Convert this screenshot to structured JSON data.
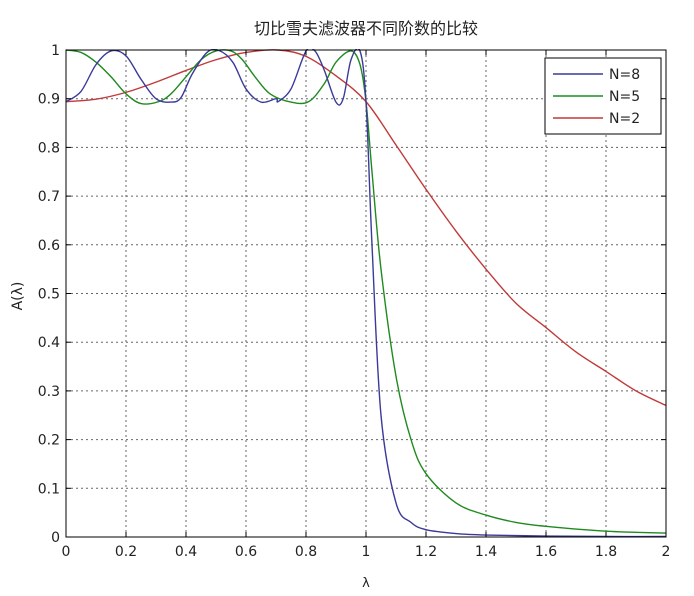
{
  "chart_data": {
    "type": "line",
    "title": "切比雪夫滤波器不同阶数的比较",
    "xlabel": "λ",
    "ylabel": "A(λ)",
    "xlim": [
      0,
      2
    ],
    "ylim": [
      0,
      1
    ],
    "x_ticks": [
      0,
      0.2,
      0.4,
      0.6,
      0.8,
      1,
      1.2,
      1.4,
      1.6,
      1.8,
      2
    ],
    "x_tick_labels": [
      "0",
      "0.2",
      "0.4",
      "0.6",
      "0.8",
      "1",
      "1.2",
      "1.4",
      "1.6",
      "1.8",
      "2"
    ],
    "y_ticks": [
      0,
      0.1,
      0.2,
      0.3,
      0.4,
      0.5,
      0.6,
      0.7,
      0.8,
      0.9,
      1
    ],
    "y_tick_labels": [
      "0",
      "0.1",
      "0.2",
      "0.3",
      "0.4",
      "0.5",
      "0.6",
      "0.7",
      "0.8",
      "0.9",
      "1"
    ],
    "grid": true,
    "legend": "top-right",
    "series": [
      {
        "name": "N=8",
        "color": "#3a3a9a",
        "x": [
          0,
          0.05,
          0.1,
          0.15,
          0.2,
          0.25,
          0.3,
          0.35,
          0.383,
          0.42,
          0.47,
          0.51,
          0.556,
          0.6,
          0.65,
          0.7,
          0.707,
          0.75,
          0.8,
          0.83,
          0.86,
          0.9,
          0.924,
          0.95,
          0.98,
          1,
          1.02,
          1.05,
          1.1,
          1.15,
          1.2,
          1.3,
          1.4,
          1.6,
          1.8,
          2
        ],
        "y": [
          0.894,
          0.915,
          0.97,
          0.998,
          0.988,
          0.94,
          0.9,
          0.893,
          0.902,
          0.95,
          0.995,
          0.999,
          0.975,
          0.92,
          0.893,
          0.9,
          0.894,
          0.92,
          0.998,
          0.998,
          0.96,
          0.893,
          0.9,
          0.98,
          0.998,
          0.894,
          0.6,
          0.25,
          0.07,
          0.03,
          0.015,
          0.007,
          0.004,
          0.002,
          0.001,
          0.001
        ]
      },
      {
        "name": "N=5",
        "color": "#1f8a1f",
        "x": [
          0,
          0.05,
          0.1,
          0.15,
          0.2,
          0.25,
          0.309,
          0.35,
          0.4,
          0.45,
          0.5,
          0.55,
          0.588,
          0.63,
          0.68,
          0.75,
          0.809,
          0.86,
          0.9,
          0.95,
          0.98,
          1,
          1.02,
          1.05,
          1.1,
          1.15,
          1.2,
          1.3,
          1.4,
          1.5,
          1.6,
          1.8,
          2
        ],
        "y": [
          1.0,
          0.995,
          0.975,
          0.945,
          0.91,
          0.89,
          0.894,
          0.91,
          0.945,
          0.98,
          0.998,
          0.998,
          0.98,
          0.945,
          0.91,
          0.893,
          0.894,
          0.93,
          0.975,
          0.998,
          0.97,
          0.894,
          0.75,
          0.55,
          0.33,
          0.2,
          0.13,
          0.07,
          0.045,
          0.03,
          0.022,
          0.012,
          0.008
        ]
      },
      {
        "name": "N=2",
        "color": "#c03a3a",
        "x": [
          0,
          0.1,
          0.2,
          0.3,
          0.4,
          0.5,
          0.6,
          0.707,
          0.8,
          0.9,
          1,
          1.1,
          1.2,
          1.3,
          1.4,
          1.5,
          1.6,
          1.7,
          1.8,
          1.9,
          2
        ],
        "y": [
          0.894,
          0.899,
          0.913,
          0.934,
          0.958,
          0.98,
          0.995,
          1.0,
          0.987,
          0.947,
          0.894,
          0.805,
          0.714,
          0.628,
          0.55,
          0.48,
          0.43,
          0.38,
          0.34,
          0.3,
          0.27
        ]
      }
    ]
  }
}
